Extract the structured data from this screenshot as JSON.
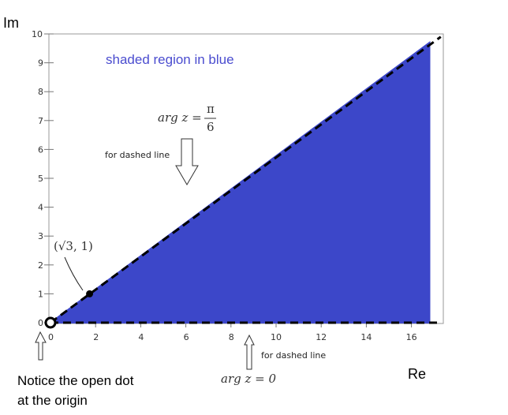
{
  "chart_data": {
    "type": "area",
    "xlabel": "Re",
    "ylabel": "Im",
    "xlim": [
      0,
      17.3
    ],
    "ylim": [
      0,
      10
    ],
    "x_ticks": [
      "0",
      "2",
      "4",
      "6",
      "8",
      "10",
      "12",
      "14",
      "16"
    ],
    "y_ticks": [
      "0",
      "1",
      "2",
      "3",
      "4",
      "5",
      "6",
      "7",
      "8",
      "9",
      "10"
    ],
    "region": {
      "description": "shaded region in blue",
      "color": "#3c47c9",
      "vertices": [
        [
          0,
          0
        ],
        [
          16.8,
          9.7
        ],
        [
          16.8,
          0
        ]
      ]
    },
    "boundary_lines": [
      {
        "equation": "arg z = π/6",
        "slope": 0.57735,
        "style": "dashed",
        "from_x": 0,
        "to_x": 17.3
      },
      {
        "equation": "arg z = 0",
        "slope": 0,
        "style": "dashed",
        "from_x": 0,
        "to_x": 17.3
      }
    ],
    "points": [
      {
        "label": "(√3, 1)",
        "x": 1.732,
        "y": 1,
        "filled": true
      },
      {
        "label": "",
        "x": 0,
        "y": 0,
        "filled": false
      }
    ],
    "annotations": {
      "shaded": "shaded region in blue",
      "arg_top": "arg z = π/6",
      "arg_top_prefix": "arg z =",
      "pi": "π",
      "six": "6",
      "arg_bottom": "arg z = 0",
      "for_dashed_top": "for dashed line",
      "for_dashed_bottom": "for dashed line",
      "point_label": "(√3, 1)",
      "note_line1": "Notice the open dot",
      "note_line2": "at the origin"
    }
  }
}
